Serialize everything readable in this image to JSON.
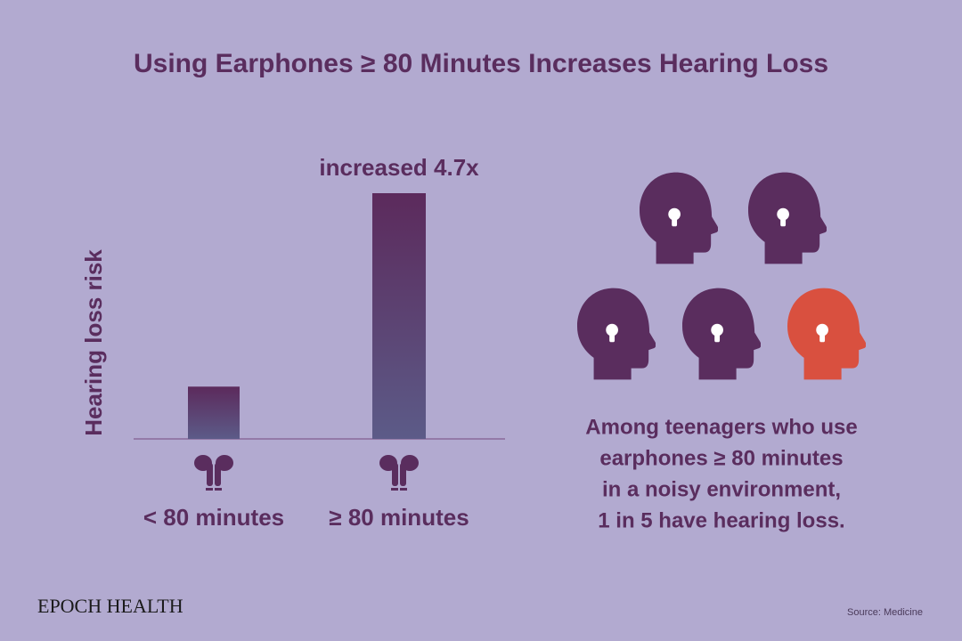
{
  "chart_data": {
    "type": "bar",
    "title": "Using Earphones ≥ 80 Minutes Increases Hearing Loss",
    "y_label": "Hearing loss risk",
    "categories": [
      "< 80 minutes",
      "≥ 80 minutes"
    ],
    "values": [
      1,
      4.7
    ],
    "value_labels": [
      null,
      "increased 4.7x"
    ],
    "colors": [
      "#5c2a5c",
      "#5c5b88"
    ],
    "annotation": [
      "Among teenagers who use",
      "earphones ≥ 80 minutes",
      "in a noisy environment,",
      "1 in 5 have hearing loss."
    ]
  },
  "brand": "EPOCH HEALTH",
  "source": "Source: Medicine"
}
